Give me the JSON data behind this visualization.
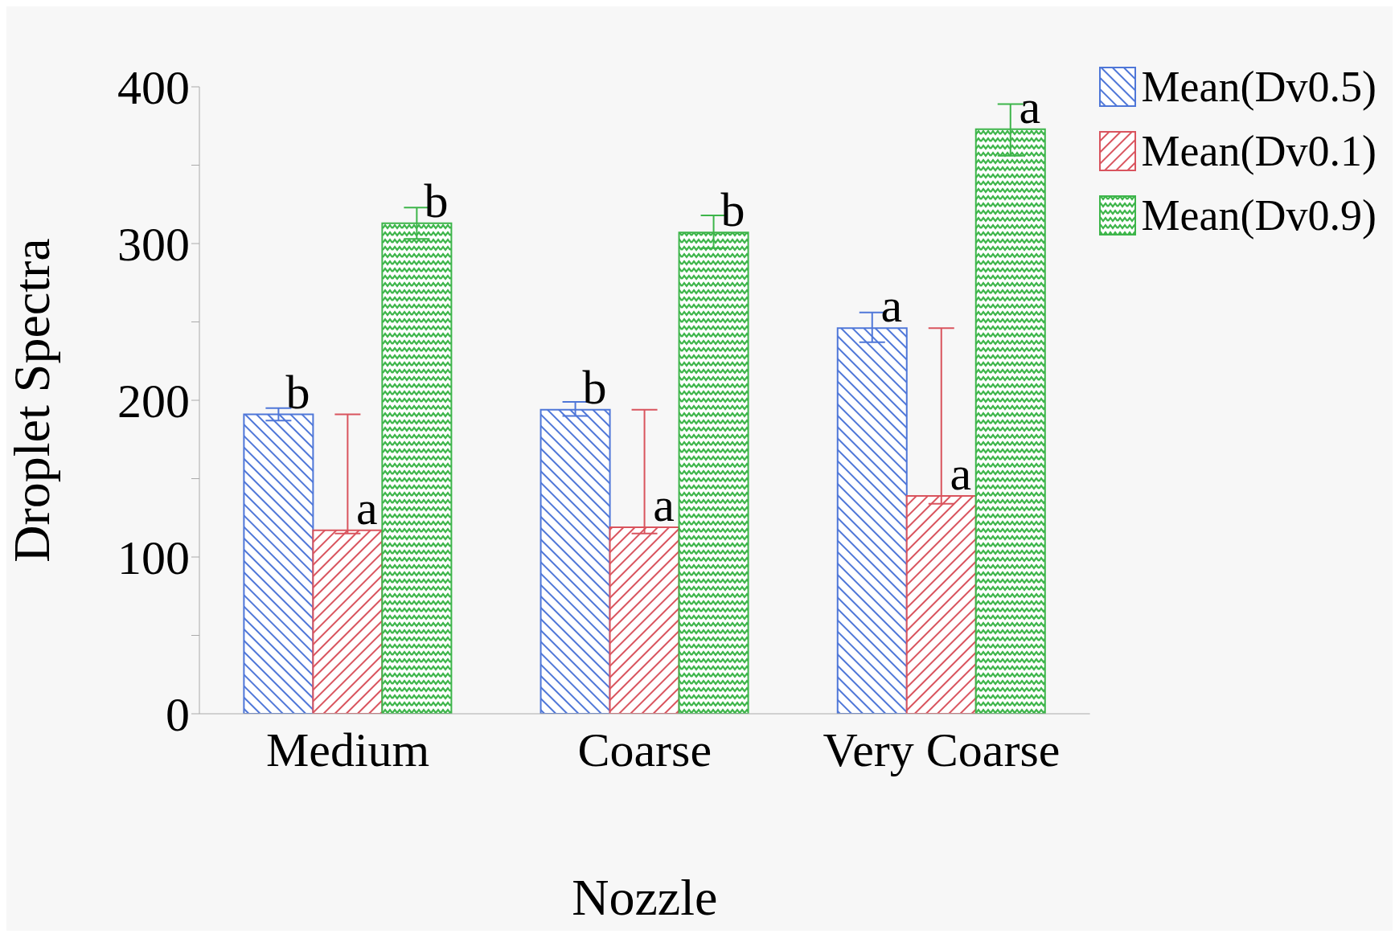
{
  "chart_data": {
    "type": "bar",
    "xlabel": "Nozzle",
    "ylabel": "Droplet Spectra",
    "categories": [
      "Medium",
      "Coarse",
      "Very Coarse"
    ],
    "series": [
      {
        "name": "Mean(Dv0.5)",
        "color": "#4f77d8",
        "values": [
          191,
          194,
          246
        ],
        "errors": [
          [
            187,
            195
          ],
          [
            190,
            199
          ],
          [
            237,
            256
          ]
        ],
        "value_labels": [
          "b",
          "b",
          "a"
        ]
      },
      {
        "name": "Mean(Dv0.1)",
        "color": "#d9545e",
        "values": [
          117,
          119,
          139
        ],
        "errors": [
          [
            115,
            191
          ],
          [
            115,
            194
          ],
          [
            134,
            246
          ]
        ],
        "value_labels": [
          "a",
          "a",
          "a"
        ]
      },
      {
        "name": "Mean(Dv0.9)",
        "color": "#3db54a",
        "values": [
          313,
          307,
          373
        ],
        "errors": [
          [
            303,
            323
          ],
          [
            297,
            318
          ],
          [
            356,
            389
          ]
        ],
        "value_labels": [
          "b",
          "b",
          "a"
        ]
      }
    ],
    "ylim": [
      0,
      400
    ],
    "yticks": [
      0,
      {
        "value": 50,
        "label": null
      },
      100,
      {
        "value": 150,
        "label": null
      },
      200,
      {
        "value": 250,
        "label": null
      },
      300,
      {
        "value": 350,
        "label": null
      },
      400
    ],
    "grid": false,
    "legend": "top right"
  }
}
